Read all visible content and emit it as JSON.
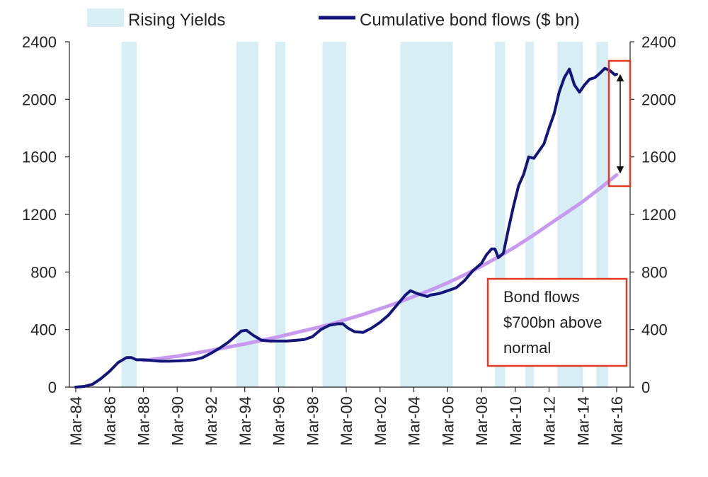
{
  "chart_data": {
    "type": "line",
    "title": "",
    "xlabel": "",
    "ylabel": "",
    "ylim": [
      0,
      2400
    ],
    "y_ticks": [
      0,
      400,
      800,
      1200,
      1600,
      2000,
      2400
    ],
    "x_ticks": [
      "Mar-84",
      "Mar-86",
      "Mar-88",
      "Mar-90",
      "Mar-92",
      "Mar-94",
      "Mar-96",
      "Mar-98",
      "Mar-00",
      "Mar-02",
      "Mar-04",
      "Mar-06",
      "Mar-08",
      "Mar-10",
      "Mar-12",
      "Mar-14",
      "Mar-16"
    ],
    "x_tick_years": [
      1984,
      1986,
      1988,
      1990,
      1992,
      1994,
      1996,
      1998,
      2000,
      2002,
      2004,
      2006,
      2008,
      2010,
      2012,
      2014,
      2016
    ],
    "xlim": [
      1984.0,
      2016.0
    ],
    "dual_y_axis": true,
    "grid": false,
    "legend_position": "top",
    "legend": [
      {
        "label": "Rising Yields",
        "kind": "band",
        "color": "#d6eef4"
      },
      {
        "label": "Cumulative bond flows ($ bn)",
        "kind": "line",
        "color": "#14157a"
      }
    ],
    "rising_yield_periods": [
      [
        1986.7,
        1987.6
      ],
      [
        1993.5,
        1994.8
      ],
      [
        1995.8,
        1996.4
      ],
      [
        1998.6,
        2000.0
      ],
      [
        2003.2,
        2006.3
      ],
      [
        2008.8,
        2009.4
      ],
      [
        2010.6,
        2011.1
      ],
      [
        2012.5,
        2014.0
      ],
      [
        2014.8,
        2015.5
      ]
    ],
    "series": [
      {
        "name": "Cumulative bond flows ($ bn)",
        "color": "#14157a",
        "points": [
          [
            1984.0,
            0
          ],
          [
            1984.5,
            5
          ],
          [
            1985.0,
            20
          ],
          [
            1985.5,
            60
          ],
          [
            1986.0,
            110
          ],
          [
            1986.5,
            170
          ],
          [
            1987.0,
            205
          ],
          [
            1987.3,
            205
          ],
          [
            1987.6,
            190
          ],
          [
            1988.0,
            190
          ],
          [
            1988.5,
            185
          ],
          [
            1989.0,
            180
          ],
          [
            1989.5,
            180
          ],
          [
            1990.0,
            182
          ],
          [
            1990.5,
            185
          ],
          [
            1991.0,
            190
          ],
          [
            1991.5,
            205
          ],
          [
            1992.0,
            235
          ],
          [
            1992.5,
            270
          ],
          [
            1993.0,
            310
          ],
          [
            1993.5,
            360
          ],
          [
            1993.8,
            390
          ],
          [
            1994.1,
            395
          ],
          [
            1994.5,
            360
          ],
          [
            1995.0,
            325
          ],
          [
            1995.5,
            320
          ],
          [
            1996.0,
            320
          ],
          [
            1996.5,
            320
          ],
          [
            1997.0,
            325
          ],
          [
            1997.5,
            330
          ],
          [
            1998.0,
            350
          ],
          [
            1998.5,
            400
          ],
          [
            1999.0,
            430
          ],
          [
            1999.5,
            440
          ],
          [
            1999.8,
            440
          ],
          [
            2000.1,
            410
          ],
          [
            2000.5,
            385
          ],
          [
            2001.0,
            380
          ],
          [
            2001.5,
            410
          ],
          [
            2002.0,
            450
          ],
          [
            2002.5,
            500
          ],
          [
            2003.0,
            570
          ],
          [
            2003.5,
            640
          ],
          [
            2003.8,
            670
          ],
          [
            2004.2,
            650
          ],
          [
            2004.5,
            640
          ],
          [
            2004.8,
            630
          ],
          [
            2005.0,
            640
          ],
          [
            2005.5,
            650
          ],
          [
            2006.0,
            670
          ],
          [
            2006.5,
            690
          ],
          [
            2007.0,
            740
          ],
          [
            2007.5,
            810
          ],
          [
            2008.0,
            860
          ],
          [
            2008.3,
            920
          ],
          [
            2008.6,
            960
          ],
          [
            2008.8,
            960
          ],
          [
            2009.0,
            900
          ],
          [
            2009.3,
            930
          ],
          [
            2009.6,
            1100
          ],
          [
            2009.9,
            1260
          ],
          [
            2010.2,
            1400
          ],
          [
            2010.5,
            1480
          ],
          [
            2010.8,
            1600
          ],
          [
            2011.1,
            1590
          ],
          [
            2011.4,
            1640
          ],
          [
            2011.7,
            1690
          ],
          [
            2012.0,
            1800
          ],
          [
            2012.3,
            1900
          ],
          [
            2012.6,
            2050
          ],
          [
            2012.9,
            2150
          ],
          [
            2013.2,
            2210
          ],
          [
            2013.5,
            2100
          ],
          [
            2013.8,
            2050
          ],
          [
            2014.1,
            2100
          ],
          [
            2014.4,
            2140
          ],
          [
            2014.7,
            2150
          ],
          [
            2015.0,
            2180
          ],
          [
            2015.3,
            2215
          ],
          [
            2015.6,
            2200
          ],
          [
            2015.9,
            2170
          ],
          [
            2016.0,
            2175
          ]
        ]
      },
      {
        "name": "",
        "color": "#c79af0",
        "points": [
          [
            1988.0,
            185
          ],
          [
            1989.0,
            200
          ],
          [
            1990.0,
            215
          ],
          [
            1991.0,
            235
          ],
          [
            1992.0,
            255
          ],
          [
            1993.0,
            278
          ],
          [
            1994.0,
            300
          ],
          [
            1995.0,
            325
          ],
          [
            1996.0,
            350
          ],
          [
            1997.0,
            378
          ],
          [
            1998.0,
            405
          ],
          [
            1999.0,
            435
          ],
          [
            2000.0,
            470
          ],
          [
            2001.0,
            505
          ],
          [
            2002.0,
            545
          ],
          [
            2003.0,
            585
          ],
          [
            2004.0,
            630
          ],
          [
            2005.0,
            675
          ],
          [
            2006.0,
            725
          ],
          [
            2007.0,
            780
          ],
          [
            2008.0,
            840
          ],
          [
            2009.0,
            905
          ],
          [
            2010.0,
            975
          ],
          [
            2011.0,
            1050
          ],
          [
            2012.0,
            1130
          ],
          [
            2013.0,
            1210
          ],
          [
            2014.0,
            1290
          ],
          [
            2015.0,
            1380
          ],
          [
            2016.0,
            1475
          ]
        ]
      }
    ],
    "annotation": {
      "lines": [
        "Bond flows",
        "$700bn above",
        "normal"
      ],
      "arrow_from": 2150,
      "arrow_to": 1510
    }
  }
}
